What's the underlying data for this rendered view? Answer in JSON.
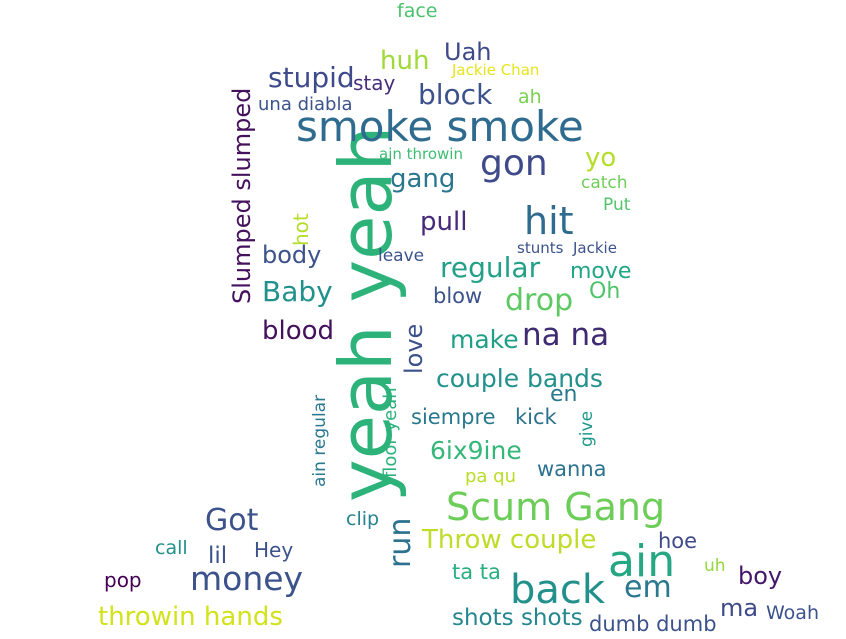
{
  "words": [
    {
      "text": "yeah yeah",
      "color": "#2db37a",
      "rotated": true
    },
    {
      "text": "smoke smoke",
      "color": "#2f6b8e",
      "rotated": false
    },
    {
      "text": "Scum Gang",
      "color": "#6ccd59",
      "rotated": false
    },
    {
      "text": "ain",
      "color": "#26a784",
      "rotated": false
    },
    {
      "text": "back",
      "color": "#22908b",
      "rotated": false
    },
    {
      "text": "money",
      "color": "#3b528b",
      "rotated": false
    },
    {
      "text": "hit",
      "color": "#2f6b8e",
      "rotated": false
    },
    {
      "text": "gon",
      "color": "#3e4a89",
      "rotated": false
    },
    {
      "text": "na na",
      "color": "#3e2b72",
      "rotated": false
    },
    {
      "text": "Got",
      "color": "#3b528b",
      "rotated": false
    },
    {
      "text": "em",
      "color": "#2a788e",
      "rotated": false
    },
    {
      "text": "drop",
      "color": "#5ec962",
      "rotated": false
    },
    {
      "text": "regular",
      "color": "#23a088",
      "rotated": false
    },
    {
      "text": "Baby",
      "color": "#21918c",
      "rotated": false
    },
    {
      "text": "block",
      "color": "#3b528b",
      "rotated": false
    },
    {
      "text": "stupid",
      "color": "#3e4a89",
      "rotated": false
    },
    {
      "text": "couple bands",
      "color": "#22908b",
      "rotated": false
    },
    {
      "text": "Throw couple",
      "color": "#c0dc2a",
      "rotated": false
    },
    {
      "text": "run",
      "color": "#2c728e",
      "rotated": true
    },
    {
      "text": "Slumped slumped",
      "color": "#44115c",
      "rotated": true
    },
    {
      "text": "blood",
      "color": "#44115c",
      "rotated": false
    },
    {
      "text": "pull",
      "color": "#472a79",
      "rotated": false
    },
    {
      "text": "gang",
      "color": "#2a768e",
      "rotated": false
    },
    {
      "text": "throwin hands",
      "color": "#d2e21b",
      "rotated": false
    },
    {
      "text": "shots shots",
      "color": "#24868e",
      "rotated": false
    },
    {
      "text": "6ix9ine",
      "color": "#35b779",
      "rotated": false
    },
    {
      "text": "make",
      "color": "#1f9f88",
      "rotated": false
    },
    {
      "text": "love",
      "color": "#3b518b",
      "rotated": true
    },
    {
      "text": "body",
      "color": "#3b528b",
      "rotated": false
    },
    {
      "text": "Uah",
      "color": "#3e4a89",
      "rotated": false
    },
    {
      "text": "huh",
      "color": "#a0da39",
      "rotated": false
    },
    {
      "text": "yo",
      "color": "#b5de2b",
      "rotated": false
    },
    {
      "text": "boy",
      "color": "#44166a",
      "rotated": false
    },
    {
      "text": "ma",
      "color": "#3e4a89",
      "rotated": false
    },
    {
      "text": "hoe",
      "color": "#3e4a89",
      "rotated": false
    },
    {
      "text": "blow",
      "color": "#3b528b",
      "rotated": false
    },
    {
      "text": "move",
      "color": "#21a585",
      "rotated": false
    },
    {
      "text": "Oh",
      "color": "#4ec36b",
      "rotated": false
    },
    {
      "text": "en",
      "color": "#2a788e",
      "rotated": false
    },
    {
      "text": "siempre",
      "color": "#2a788e",
      "rotated": false
    },
    {
      "text": "kick",
      "color": "#2c728e",
      "rotated": false
    },
    {
      "text": "wanna",
      "color": "#2c728e",
      "rotated": false
    },
    {
      "text": "ta ta",
      "color": "#29af7f",
      "rotated": false
    },
    {
      "text": "dumb dumb",
      "color": "#3b528b",
      "rotated": false
    },
    {
      "text": "Woah",
      "color": "#3b528b",
      "rotated": false
    },
    {
      "text": "lil",
      "color": "#3b528b",
      "rotated": false
    },
    {
      "text": "Hey",
      "color": "#3b528b",
      "rotated": false
    },
    {
      "text": "call",
      "color": "#22908b",
      "rotated": false
    },
    {
      "text": "pop",
      "color": "#440154",
      "rotated": false
    },
    {
      "text": "clip",
      "color": "#26828e",
      "rotated": false
    },
    {
      "text": "pa qu",
      "color": "#b8de29",
      "rotated": false
    },
    {
      "text": "give",
      "color": "#1f978b",
      "rotated": true
    },
    {
      "text": "floor yeah",
      "color": "#2db27d",
      "rotated": true
    },
    {
      "text": "ain regular",
      "color": "#2a788e",
      "rotated": true
    },
    {
      "text": "hot",
      "color": "#b5de2b",
      "rotated": true
    },
    {
      "text": "stay",
      "color": "#472d7b",
      "rotated": false
    },
    {
      "text": "una diabla",
      "color": "#3b528b",
      "rotated": false
    },
    {
      "text": "ah",
      "color": "#7ad151",
      "rotated": false
    },
    {
      "text": "Jackie Chan",
      "color": "#e7e419",
      "rotated": false
    },
    {
      "text": "ain throwin",
      "color": "#3fbc73",
      "rotated": false
    },
    {
      "text": "catch",
      "color": "#6ece58",
      "rotated": false
    },
    {
      "text": "Put",
      "color": "#51c56a",
      "rotated": false
    },
    {
      "text": "stunts",
      "color": "#3b528b",
      "rotated": false
    },
    {
      "text": "Jackie",
      "color": "#3b528b",
      "rotated": false
    },
    {
      "text": "leave",
      "color": "#3b528b",
      "rotated": false
    },
    {
      "text": "face",
      "color": "#4ac16d",
      "rotated": false
    },
    {
      "text": "uh",
      "color": "#95d840",
      "rotated": false
    }
  ]
}
